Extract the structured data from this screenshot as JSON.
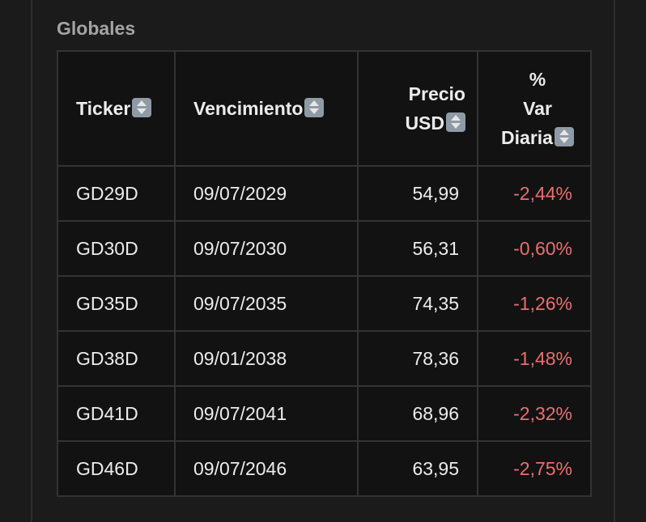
{
  "section": {
    "title": "Globales"
  },
  "table": {
    "headers": [
      "Ticker",
      "Vencimiento",
      "Precio USD",
      "% Var Diaria"
    ],
    "rows": [
      [
        "GD29D",
        "09/07/2029",
        "54,99",
        "-2,44%"
      ],
      [
        "GD30D",
        "09/07/2030",
        "56,31",
        "-0,60%"
      ],
      [
        "GD35D",
        "09/07/2035",
        "74,35",
        "-1,26%"
      ],
      [
        "GD38D",
        "09/01/2038",
        "78,36",
        "-1,48%"
      ],
      [
        "GD41D",
        "09/07/2041",
        "68,96",
        "-2,32%"
      ],
      [
        "GD46D",
        "09/07/2046",
        "63,95",
        "-2,75%"
      ]
    ]
  }
}
